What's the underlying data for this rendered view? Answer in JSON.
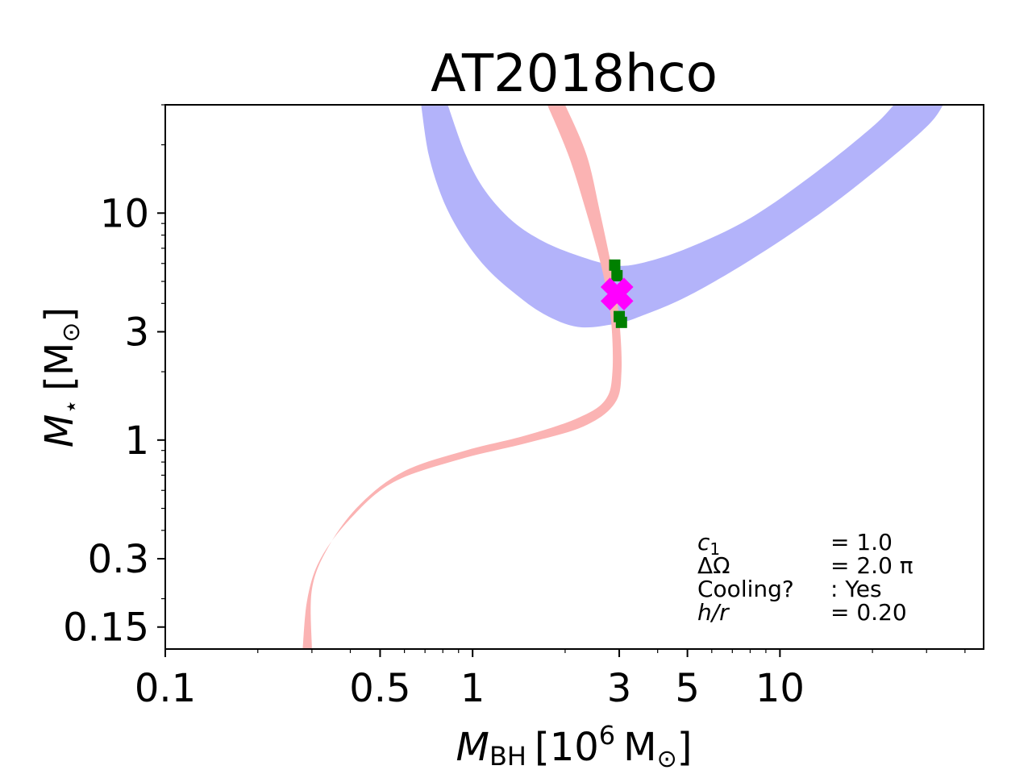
{
  "chart_data": {
    "type": "band-plot",
    "title": "AT2018hco",
    "xlabel": {
      "symbol": "M",
      "sub": "BH",
      "unit_prefix": "[10",
      "unit_exp": "6",
      "unit_mass": "M",
      "unit_close": "]"
    },
    "ylabel": {
      "symbol": "M",
      "sub": "⋆",
      "unit_open": "[M",
      "unit_close": "]"
    },
    "x_scale": "log",
    "y_scale": "log",
    "xlim": [
      0.1,
      46
    ],
    "ylim": [
      0.12,
      30
    ],
    "x_ticks": [
      {
        "value": 0.1,
        "label": "0.1"
      },
      {
        "value": 0.5,
        "label": "0.5"
      },
      {
        "value": 1,
        "label": "1"
      },
      {
        "value": 3,
        "label": "3"
      },
      {
        "value": 5,
        "label": "5"
      },
      {
        "value": 10,
        "label": "10"
      }
    ],
    "y_ticks": [
      {
        "value": 0.15,
        "label": "0.15"
      },
      {
        "value": 0.3,
        "label": "0.3"
      },
      {
        "value": 1,
        "label": "1"
      },
      {
        "value": 3,
        "label": "3"
      },
      {
        "value": 10,
        "label": "10"
      }
    ],
    "grid": false,
    "series": [
      {
        "color": "#b3b3fa",
        "band": {
          "upper": [
            [
              0.83,
              30
            ],
            [
              0.95,
              18
            ],
            [
              1.1,
              12.5
            ],
            [
              1.35,
              9.2
            ],
            [
              1.7,
              7.5
            ],
            [
              2.2,
              6.5
            ],
            [
              2.85,
              5.9
            ],
            [
              3.5,
              6.0
            ],
            [
              5,
              7.0
            ],
            [
              8,
              9.5
            ],
            [
              13,
              15
            ],
            [
              20,
              24
            ],
            [
              23.5,
              30
            ]
          ],
          "lower": [
            [
              0.68,
              30
            ],
            [
              0.72,
              18
            ],
            [
              0.8,
              11.5
            ],
            [
              0.92,
              8.0
            ],
            [
              1.1,
              5.8
            ],
            [
              1.35,
              4.5
            ],
            [
              1.7,
              3.6
            ],
            [
              2.2,
              3.15
            ],
            [
              2.9,
              3.25
            ],
            [
              3.5,
              3.5
            ],
            [
              5,
              4.3
            ],
            [
              8,
              6.2
            ],
            [
              13,
              9.6
            ],
            [
              20,
              15
            ],
            [
              30,
              24
            ],
            [
              34,
              30
            ]
          ]
        }
      },
      {
        "color": "#fbb3b3",
        "band": {
          "upper": [
            [
              2.0,
              30
            ],
            [
              2.35,
              18
            ],
            [
              2.6,
              10
            ],
            [
              2.85,
              5.5
            ],
            [
              3.0,
              3.4
            ],
            [
              3.05,
              2.0
            ],
            [
              2.9,
              1.45
            ],
            [
              2.3,
              1.15
            ],
            [
              1.5,
              0.97
            ],
            [
              0.9,
              0.82
            ],
            [
              0.55,
              0.65
            ],
            [
              0.4,
              0.45
            ],
            [
              0.32,
              0.3
            ],
            [
              0.29,
              0.2
            ],
            [
              0.28,
              0.12
            ]
          ],
          "lower": [
            [
              1.75,
              30
            ],
            [
              2.05,
              18
            ],
            [
              2.35,
              10
            ],
            [
              2.65,
              5.5
            ],
            [
              2.82,
              3.4
            ],
            [
              2.85,
              2.0
            ],
            [
              2.7,
              1.5
            ],
            [
              2.2,
              1.25
            ],
            [
              1.5,
              1.05
            ],
            [
              0.95,
              0.9
            ],
            [
              0.6,
              0.73
            ],
            [
              0.43,
              0.52
            ],
            [
              0.34,
              0.34
            ],
            [
              0.3,
              0.22
            ],
            [
              0.3,
              0.12
            ]
          ]
        }
      },
      {
        "color": "#008000",
        "type": "scatter",
        "points": [
          [
            2.9,
            5.9
          ],
          [
            2.95,
            5.3
          ],
          [
            3.0,
            3.5
          ],
          [
            3.05,
            3.3
          ]
        ]
      }
    ],
    "best_fit": {
      "x": 2.95,
      "y": 4.4,
      "color": "#ff00ff",
      "marker": "X"
    },
    "annotations": [
      {
        "symbol": "c",
        "sub": "1",
        "value": "=  1.0"
      },
      {
        "symbol": "ΔΩ",
        "value": "=  2.0 π"
      },
      {
        "symbol": "Cooling?",
        "value": ": Yes"
      },
      {
        "symbol": "h/r",
        "value": "= 0.20"
      }
    ]
  }
}
